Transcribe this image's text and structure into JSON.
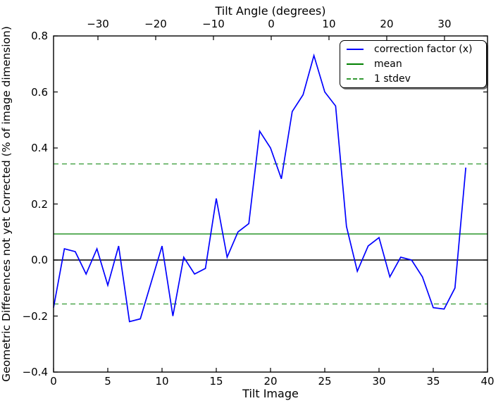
{
  "colors": {
    "line": "#0000ff",
    "mean": "#008000",
    "stdev": "#339933",
    "zero": "#000000",
    "axis": "#000000",
    "background": "#ffffff"
  },
  "labels": {
    "top_title": "Tilt Angle (degrees)",
    "xlabel": "Tilt Image",
    "ylabel": "Geometric Differences not yet Corrected (% of image dimension)"
  },
  "legend": {
    "position": "upper right",
    "entries": [
      {
        "label": "correction factor (x)",
        "style": "solid",
        "color": "#0000ff"
      },
      {
        "label": "mean",
        "style": "solid",
        "color": "#008000"
      },
      {
        "label": "1 stdev",
        "style": "dashed",
        "color": "#339933"
      }
    ]
  },
  "chart_data": {
    "type": "line",
    "title": "Tilt Angle (degrees)",
    "xlabel": "Tilt Image",
    "ylabel": "Geometric Differences not yet Corrected (% of image dimension)",
    "xlim": [
      0,
      40
    ],
    "ylim": [
      -0.4,
      0.8
    ],
    "grid": false,
    "x": [
      0,
      1,
      2,
      3,
      4,
      5,
      6,
      7,
      8,
      9,
      10,
      11,
      12,
      13,
      14,
      15,
      16,
      17,
      18,
      19,
      20,
      21,
      22,
      23,
      24,
      25,
      26,
      27,
      28,
      29,
      30,
      31,
      32,
      33,
      34,
      35,
      36,
      37,
      38
    ],
    "series": [
      {
        "name": "correction factor (x)",
        "color": "#0000ff",
        "values": [
          -0.17,
          0.04,
          0.03,
          -0.05,
          0.04,
          -0.09,
          0.05,
          -0.22,
          -0.21,
          -0.08,
          0.05,
          -0.2,
          0.01,
          -0.05,
          -0.03,
          0.22,
          0.01,
          0.1,
          0.13,
          0.46,
          0.4,
          0.29,
          0.53,
          0.59,
          0.73,
          0.6,
          0.55,
          0.12,
          -0.04,
          0.05,
          0.08,
          -0.06,
          0.01,
          0.0,
          -0.06,
          -0.17,
          -0.175,
          -0.1,
          0.33
        ]
      }
    ],
    "reference_lines": {
      "zero": 0.0,
      "mean": 0.093,
      "stdev_upper": 0.343,
      "stdev_lower": -0.157
    },
    "xticks": [
      {
        "v": 0,
        "label": "0"
      },
      {
        "v": 5,
        "label": "5"
      },
      {
        "v": 10,
        "label": "10"
      },
      {
        "v": 15,
        "label": "15"
      },
      {
        "v": 20,
        "label": "20"
      },
      {
        "v": 25,
        "label": "25"
      },
      {
        "v": 30,
        "label": "30"
      },
      {
        "v": 35,
        "label": "35"
      },
      {
        "v": 40,
        "label": "40"
      }
    ],
    "yticks": [
      {
        "v": 0.8,
        "label": "0.8"
      },
      {
        "v": 0.6,
        "label": "0.6"
      },
      {
        "v": 0.4,
        "label": "0.4"
      },
      {
        "v": 0.2,
        "label": "0.2"
      },
      {
        "v": 0.0,
        "label": "0.0"
      },
      {
        "v": -0.2,
        "label": "−0.2"
      },
      {
        "v": -0.4,
        "label": "−0.4"
      }
    ],
    "top_axis": {
      "label": "Tilt Angle (degrees)",
      "zero_frac": 0.5016,
      "frac_per_degree": 0.01331,
      "ticks": [
        {
          "deg": -30,
          "label": "−30"
        },
        {
          "deg": -20,
          "label": "−20"
        },
        {
          "deg": -10,
          "label": "−10"
        },
        {
          "deg": 0,
          "label": "0"
        },
        {
          "deg": 10,
          "label": "10"
        },
        {
          "deg": 20,
          "label": "20"
        },
        {
          "deg": 30,
          "label": "30"
        }
      ]
    }
  }
}
